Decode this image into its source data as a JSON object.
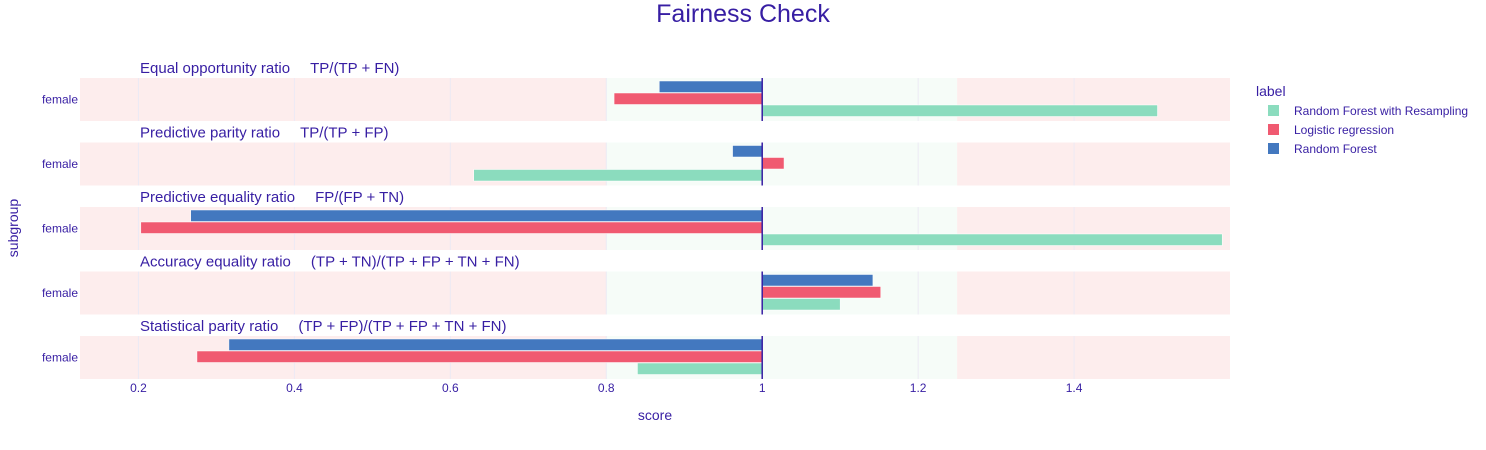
{
  "chart_data": {
    "type": "bar",
    "orientation": "horizontal",
    "title": "Fairness Check",
    "xlabel": "score",
    "ylabel": "subgroup",
    "xlim": [
      0.125,
      1.6
    ],
    "xticks": [
      0.2,
      0.4,
      0.6,
      0.8,
      1,
      1.2,
      1.4
    ],
    "xtick_labels": [
      "0.2",
      "0.4",
      "0.6",
      "0.8",
      "1",
      "1.2",
      "1.4"
    ],
    "reference_value": 1,
    "acceptable_range": [
      0.8,
      1.25
    ],
    "colors": {
      "acceptable_band": "#f6fcf8",
      "outside_band": "#fdeded",
      "reference_line": "#371ea3",
      "text": "#371ea3"
    },
    "legend": {
      "title": "label",
      "position": "right"
    },
    "series": [
      {
        "name": "Random Forest with Resampling",
        "color": "#8bdcbe"
      },
      {
        "name": "Logistic regression",
        "color": "#f05a71"
      },
      {
        "name": "Random Forest",
        "color": "#4378bf"
      }
    ],
    "panels": [
      {
        "metric": "Equal opportunity ratio",
        "formula": "TP/(TP + FN)",
        "subgroup": "female",
        "values": {
          "Random Forest with Resampling": 1.507,
          "Logistic regression": 0.81,
          "Random Forest": 0.868
        }
      },
      {
        "metric": "Predictive parity ratio",
        "formula": "TP/(TP + FP)",
        "subgroup": "female",
        "values": {
          "Random Forest with Resampling": 0.63,
          "Logistic regression": 1.028,
          "Random Forest": 0.962
        }
      },
      {
        "metric": "Predictive equality ratio",
        "formula": "FP/(FP + TN)",
        "subgroup": "female",
        "values": {
          "Random Forest with Resampling": 1.59,
          "Logistic regression": 0.203,
          "Random Forest": 0.267
        }
      },
      {
        "metric": "Accuracy equality ratio",
        "formula": "(TP + TN)/(TP + FP + TN + FN)",
        "subgroup": "female",
        "values": {
          "Random Forest with Resampling": 1.1,
          "Logistic regression": 1.152,
          "Random Forest": 1.142
        }
      },
      {
        "metric": "Statistical parity ratio",
        "formula": "(TP + FP)/(TP + FP + TN + FN)",
        "subgroup": "female",
        "values": {
          "Random Forest with Resampling": 0.84,
          "Logistic regression": 0.275,
          "Random Forest": 0.316
        }
      }
    ]
  }
}
